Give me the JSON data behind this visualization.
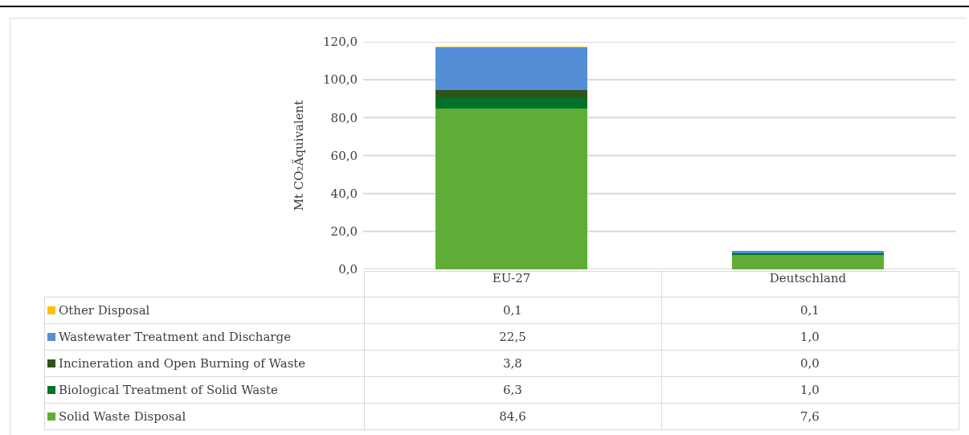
{
  "chart_data": {
    "type": "bar",
    "stacked": true,
    "ylabel": "Mt CO₂Äquivalent",
    "categories": [
      "EU-27",
      "Deutschland"
    ],
    "series": [
      {
        "name": "Solid Waste Disposal",
        "color": "#5fad36",
        "values": [
          84.6,
          7.6
        ],
        "value_labels": [
          "84,6",
          "7,6"
        ]
      },
      {
        "name": "Biological Treatment of Solid Waste",
        "color": "#007229",
        "values": [
          6.3,
          1.0
        ],
        "value_labels": [
          "6,3",
          "1,0"
        ]
      },
      {
        "name": "Incineration and Open Burning of Waste",
        "color": "#2f5419",
        "values": [
          3.8,
          0.0
        ],
        "value_labels": [
          "3,8",
          "0,0"
        ]
      },
      {
        "name": "Wastewater Treatment and Discharge",
        "color": "#558ed5",
        "values": [
          22.5,
          1.0
        ],
        "value_labels": [
          "22,5",
          "1,0"
        ]
      },
      {
        "name": "Other Disposal",
        "color": "#ffc000",
        "values": [
          0.1,
          0.1
        ],
        "value_labels": [
          "0,1",
          "0,1"
        ]
      }
    ],
    "ylim": [
      0,
      120
    ],
    "yticks": [
      {
        "value": 0,
        "label": "0,0"
      },
      {
        "value": 20,
        "label": "20,0"
      },
      {
        "value": 40,
        "label": "40,0"
      },
      {
        "value": 60,
        "label": "60,0"
      },
      {
        "value": 80,
        "label": "80,0"
      },
      {
        "value": 100,
        "label": "100,0"
      },
      {
        "value": 120,
        "label": "120,0"
      }
    ],
    "grid": "y",
    "legend": "bottom"
  }
}
